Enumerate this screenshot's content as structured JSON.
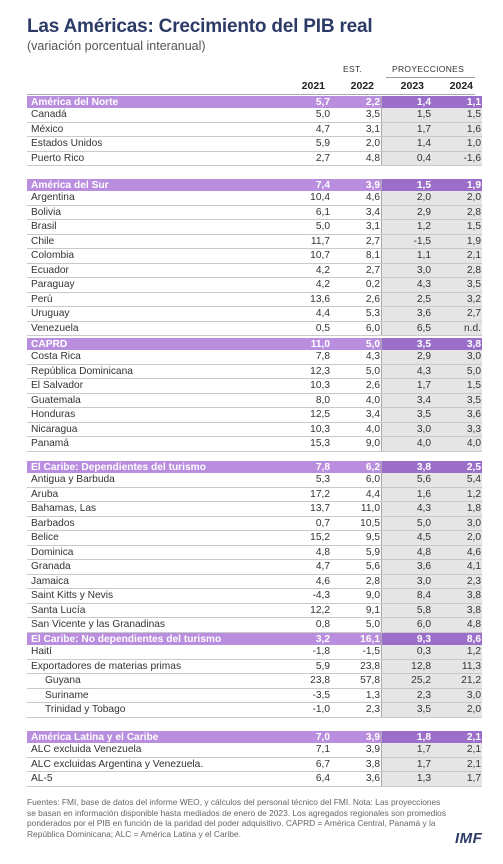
{
  "title": "Las Américas: Crecimiento del PIB real",
  "subtitle": "(variación porcentual interanual)",
  "est_label": "EST.",
  "proj_label": "PROYECCIONES",
  "years": [
    "2021",
    "2022",
    "2023",
    "2024"
  ],
  "blocks": [
    {
      "header": [
        "América del Norte",
        "5,7",
        "2,2",
        "1,4",
        "1,1"
      ],
      "rows": [
        [
          "Canadá",
          "5,0",
          "3,5",
          "1,5",
          "1,5"
        ],
        [
          "México",
          "4,7",
          "3,1",
          "1,7",
          "1,6"
        ],
        [
          "Estados Unidos",
          "5,9",
          "2,0",
          "1,4",
          "1,0"
        ],
        [
          "Puerto Rico",
          "2,7",
          "4,8",
          "0,4",
          "-1,6"
        ]
      ]
    },
    {
      "header": [
        "América del Sur",
        "7,4",
        "3,9",
        "1,5",
        "1,9"
      ],
      "rows": [
        [
          "Argentina",
          "10,4",
          "4,6",
          "2,0",
          "2,0"
        ],
        [
          "Bolivia",
          "6,1",
          "3,4",
          "2,9",
          "2,8"
        ],
        [
          "Brasil",
          "5,0",
          "3,1",
          "1,2",
          "1,5"
        ],
        [
          "Chile",
          "11,7",
          "2,7",
          "-1,5",
          "1,9"
        ],
        [
          "Colombia",
          "10,7",
          "8,1",
          "1,1",
          "2,1"
        ],
        [
          "Ecuador",
          "4,2",
          "2,7",
          "3,0",
          "2,8"
        ],
        [
          "Paraguay",
          "4,2",
          "0,2",
          "4,3",
          "3,5"
        ],
        [
          "Perú",
          "13,6",
          "2,6",
          "2,5",
          "3,2"
        ],
        [
          "Uruguay",
          "4,4",
          "5,3",
          "3,6",
          "2,7"
        ],
        [
          "Venezuela",
          "0,5",
          "6,0",
          "6,5",
          "n.d."
        ]
      ]
    },
    {
      "header": [
        "CAPRD",
        "11,0",
        "5,0",
        "3,5",
        "3,8"
      ],
      "rows": [
        [
          "Costa Rica",
          "7,8",
          "4,3",
          "2,9",
          "3,0"
        ],
        [
          "República Dominicana",
          "12,3",
          "5,0",
          "4,3",
          "5,0"
        ],
        [
          "El Salvador",
          "10,3",
          "2,6",
          "1,7",
          "1,5"
        ],
        [
          "Guatemala",
          "8,0",
          "4,0",
          "3,4",
          "3,5"
        ],
        [
          "Honduras",
          "12,5",
          "3,4",
          "3,5",
          "3,6"
        ],
        [
          "Nicaragua",
          "10,3",
          "4,0",
          "3,0",
          "3,3"
        ],
        [
          "Panamá",
          "15,3",
          "9,0",
          "4,0",
          "4,0"
        ]
      ]
    },
    {
      "header": [
        "El Caribe: Dependientes del turismo",
        "7,8",
        "6,2",
        "3,8",
        "2,5"
      ],
      "rows": [
        [
          "Antigua y Barbuda",
          "5,3",
          "6,0",
          "5,6",
          "5,4"
        ],
        [
          "Aruba",
          "17,2",
          "4,4",
          "1,6",
          "1,2"
        ],
        [
          "Bahamas, Las",
          "13,7",
          "11,0",
          "4,3",
          "1,8"
        ],
        [
          "Barbados",
          "0,7",
          "10,5",
          "5,0",
          "3,0"
        ],
        [
          "Belice",
          "15,2",
          "9,5",
          "4,5",
          "2,0"
        ],
        [
          "Dominica",
          "4,8",
          "5,9",
          "4,8",
          "4,6"
        ],
        [
          "Granada",
          "4,7",
          "5,6",
          "3,6",
          "4,1"
        ],
        [
          "Jamaica",
          "4,6",
          "2,8",
          "3,0",
          "2,3"
        ],
        [
          "Saint Kitts y Nevis",
          "-4,3",
          "9,0",
          "8,4",
          "3,8"
        ],
        [
          "Santa Lucía",
          "12,2",
          "9,1",
          "5,8",
          "3,8"
        ],
        [
          "San Vicente y las Granadinas",
          "0,8",
          "5,0",
          "6,0",
          "4,8"
        ]
      ]
    },
    {
      "header": [
        "El Caribe: No dependientes del turismo",
        "3,2",
        "16,1",
        "9,3",
        "8,6"
      ],
      "rows": [
        [
          "Haití",
          "-1,8",
          "-1,5",
          "0,3",
          "1,2"
        ],
        [
          "Exportadores de materias primas",
          "5,9",
          "23,8",
          "12,8",
          "11,3"
        ],
        [
          "Guyana",
          "23,8",
          "57,8",
          "25,2",
          "21,2"
        ],
        [
          "Suriname",
          "-3,5",
          "1,3",
          "2,3",
          "3,0"
        ],
        [
          "Trinidad y Tobago",
          "-1,0",
          "2,3",
          "3,5",
          "2,0"
        ]
      ]
    },
    {
      "header": [
        "América Latina y el Caribe",
        "7,0",
        "3,9",
        "1,8",
        "2,1"
      ],
      "rows": [
        [
          "ALC excluida Venezuela",
          "7,1",
          "3,9",
          "1,7",
          "2,1"
        ],
        [
          "ALC excluidas Argentina y Venezuela.",
          "6,7",
          "3,8",
          "1,7",
          "2,1"
        ],
        [
          "AL-5",
          "6,4",
          "3,6",
          "1,3",
          "1,7"
        ]
      ]
    }
  ],
  "source": "Fuentes: FMI, base de datos del informe WEO, y cálculos del personal técnico del FMI. Nota: Las proyecciones se basan en información disponible hasta mediados de enero de 2023. Los agregados regionales son promedios ponderados por el PIB en función de la paridad del poder adquisitivo. CAPRD = América Central, Panamá y la República Dominicana; ALC = América Latina y el Caribe.",
  "logo": "IMF"
}
